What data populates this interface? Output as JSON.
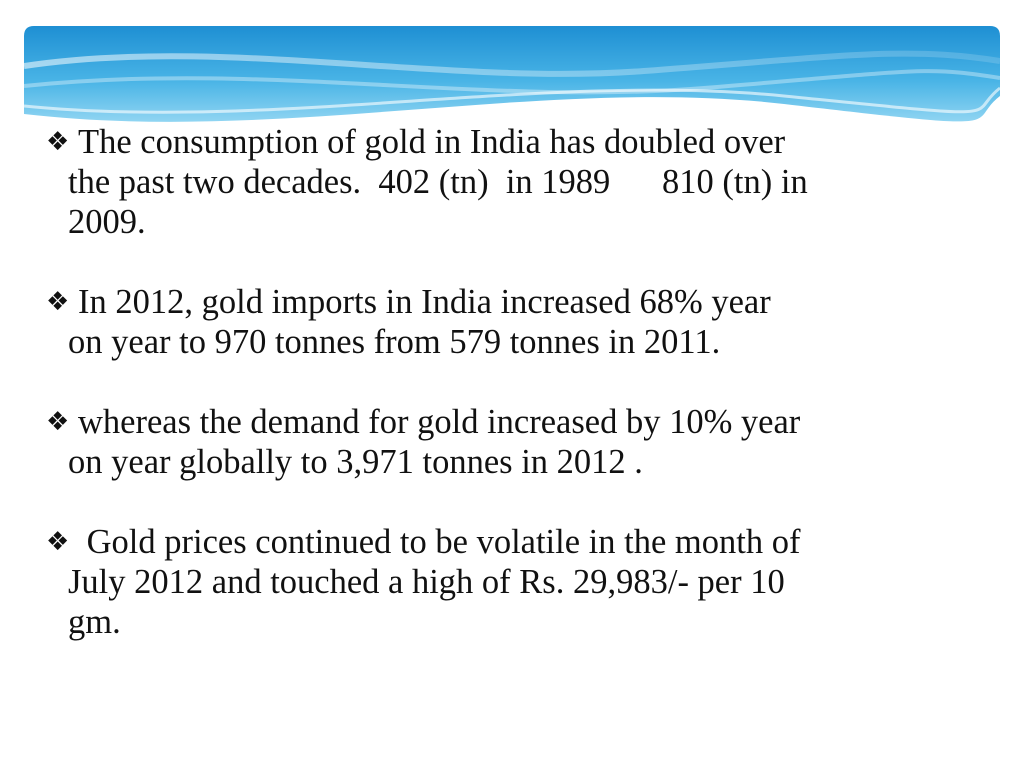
{
  "slide": {
    "bullet_symbol": "❖",
    "bullets": [
      {
        "lines": [
          "The consumption of gold in India has doubled over",
          "the past two decades.  402 (tn)  in 1989      810 (tn) in",
          "2009."
        ]
      },
      {
        "lines": [
          "In 2012, gold imports in India increased 68% year",
          "on year to 970 tonnes from 579 tonnes in 2011."
        ]
      },
      {
        "lines": [
          "whereas the demand for gold increased by 10% year",
          "on year globally to 3,971 tonnes in 2012 ."
        ]
      },
      {
        "lines": [
          " Gold prices continued to be volatile in the month of",
          "July 2012 and touched a high of Rs. 29,983/- per 10",
          "gm."
        ]
      }
    ]
  },
  "colors": {
    "header_light": "#8fd3f2",
    "header_mid": "#3aa9df",
    "header_dark": "#1c86c9",
    "text": "#111111"
  }
}
